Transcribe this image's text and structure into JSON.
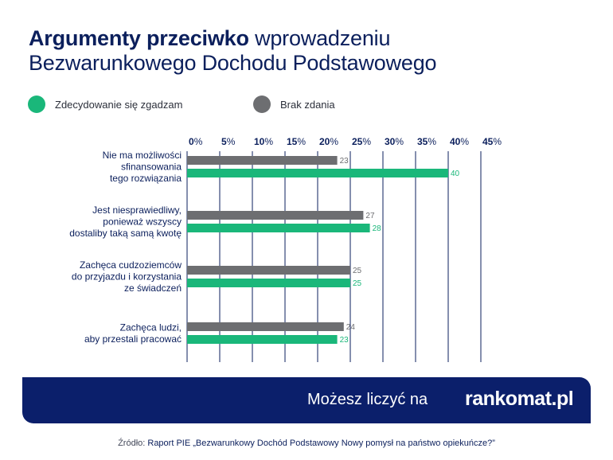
{
  "title": {
    "bold": "Argumenty przeciwko",
    "rest": " wprowadzeniu",
    "line2": "Bezwarunkowego Dochodu Podstawowego"
  },
  "chart_data": {
    "type": "bar",
    "orientation": "horizontal",
    "categories": [
      [
        "Nie ma możliwości",
        "sfinansowania",
        "tego rozwiązania"
      ],
      [
        "Jest niesprawiedliwy,",
        "ponieważ wszyscy",
        "dostaliby taką samą kwotę"
      ],
      [
        "Zachęca cudzoziemców",
        "do przyjazdu i korzystania",
        "ze świadczeń"
      ],
      [
        "Zachęca ludzi,",
        "aby przestali pracować"
      ]
    ],
    "series": [
      {
        "name": "Brak zdania",
        "color": "#6d6e71",
        "values": [
          23,
          27,
          25,
          24
        ]
      },
      {
        "name": "Zdecydowanie się zgadzam",
        "color": "#1ab77a",
        "values": [
          40,
          28,
          25,
          23
        ]
      }
    ],
    "xlim": [
      0,
      45
    ],
    "xticks": [
      0,
      5,
      10,
      15,
      20,
      25,
      30,
      35,
      40,
      45
    ],
    "tick_suffix": "%",
    "grid": true,
    "legend_position": "top-left"
  },
  "legend": {
    "item1": {
      "label": "Zdecydowanie się zgadzam",
      "color": "#1ab77a"
    },
    "item2": {
      "label": "Brak zdania",
      "color": "#6d6e71"
    }
  },
  "banner": {
    "text": "Możesz liczyć na",
    "logo": "rankomat.pl"
  },
  "source": {
    "prefix": "Źródło: ",
    "text": "Raport PIE „Bezwarunkowy Dochód Podstawowy Nowy pomysł na państwo opiekuńcze?”"
  }
}
